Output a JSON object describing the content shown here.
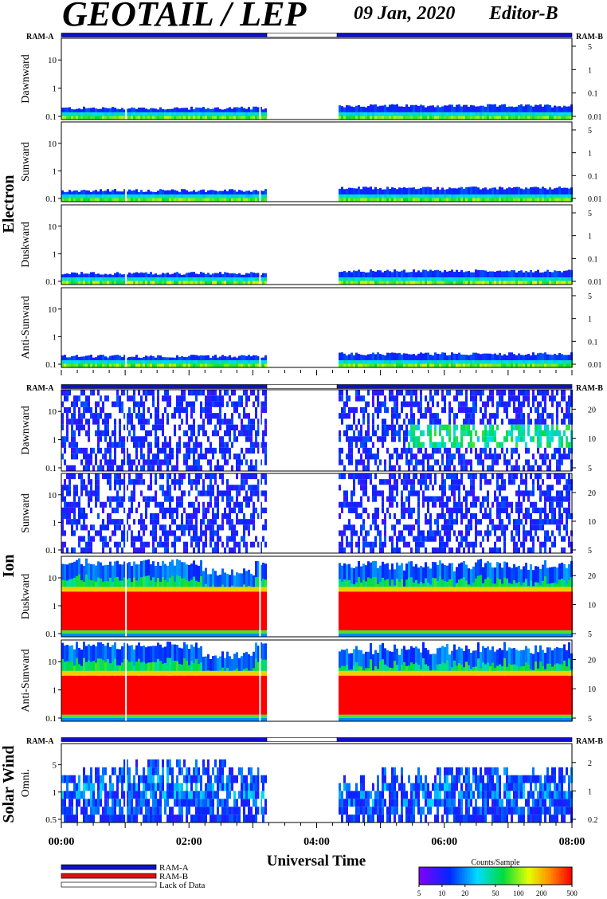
{
  "header": {
    "title": "GEOTAIL / LEP",
    "date": "09 Jan, 2020",
    "editor": "Editor-B"
  },
  "legend": {
    "ram_a": "RAM-A",
    "ram_b": "RAM-B",
    "lack": "Lack of Data",
    "colors": {
      "ram_a": "#1010c8",
      "ram_b": "#e01010",
      "lack": "#ffffff"
    }
  },
  "colorbar": {
    "title": "Counts/Sample",
    "ticks": [
      "5",
      "10",
      "20",
      "50",
      "100",
      "200",
      "500"
    ],
    "scale": "log",
    "range": [
      5,
      500
    ]
  },
  "chart_data": {
    "type": "heatmap",
    "xlabel": "Universal Time",
    "x_ticks": [
      "00:00",
      "02:00",
      "04:00",
      "06:00",
      "08:00"
    ],
    "x_range_hours": [
      0,
      8
    ],
    "data_gap_hours": [
      3.22,
      4.32
    ],
    "groups": [
      {
        "name": "Electron",
        "mode_bar": {
          "left": "RAM-A",
          "right": "RAM-B",
          "segments": [
            {
              "from": 0,
              "to": 3.22,
              "mode": "RAM-A"
            },
            {
              "from": 3.22,
              "to": 4.32,
              "mode": "Lack of Data"
            },
            {
              "from": 4.32,
              "to": 8,
              "mode": "RAM-A"
            }
          ]
        },
        "panels": [
          {
            "name": "Dawnward",
            "y_ticks": [
              "0.1",
              "1",
              "10"
            ],
            "right_ticks": [
              "5",
              "1",
              "0.1",
              "0.01"
            ],
            "profile": "electron",
            "level": 0.55
          },
          {
            "name": "Sunward",
            "y_ticks": [
              "0.1",
              "1",
              "10"
            ],
            "right_ticks": [
              "5",
              "1",
              "0.1",
              "0.01"
            ],
            "profile": "electron",
            "level": 0.55
          },
          {
            "name": "Duskward",
            "y_ticks": [
              "0.1",
              "1",
              "10"
            ],
            "right_ticks": [
              "5",
              "1",
              "0.1",
              "0.01"
            ],
            "profile": "electron",
            "level": 0.7
          },
          {
            "name": "Anti-Sunward",
            "y_ticks": [
              "0.1",
              "1",
              "10"
            ],
            "right_ticks": [
              "5",
              "1",
              "0.1",
              "0.01"
            ],
            "profile": "electron",
            "level": 0.6
          }
        ]
      },
      {
        "name": "Ion",
        "mode_bar": {
          "left": "RAM-A",
          "right": "RAM-B",
          "segments": [
            {
              "from": 0,
              "to": 3.22,
              "mode": "RAM-A"
            },
            {
              "from": 3.22,
              "to": 4.32,
              "mode": "Lack of Data"
            },
            {
              "from": 4.32,
              "to": 8,
              "mode": "RAM-A"
            }
          ]
        },
        "panels": [
          {
            "name": "Dawnward",
            "y_ticks": [
              "0.1",
              "1",
              "10"
            ],
            "right_ticks": [
              "5",
              "10",
              "20"
            ],
            "profile": "ion-sparse",
            "level": 0.3
          },
          {
            "name": "Sunward",
            "y_ticks": [
              "0.1",
              "1",
              "10"
            ],
            "right_ticks": [
              "5",
              "10",
              "20"
            ],
            "profile": "ion-sparse",
            "level": 0.2
          },
          {
            "name": "Duskward",
            "y_ticks": [
              "0.1",
              "1",
              "10"
            ],
            "right_ticks": [
              "5",
              "10",
              "20"
            ],
            "profile": "ion-dense",
            "level": 1.0
          },
          {
            "name": "Anti-Sunward",
            "y_ticks": [
              "0.1",
              "1",
              "10"
            ],
            "right_ticks": [
              "5",
              "10",
              "20"
            ],
            "profile": "ion-dense",
            "level": 1.0
          }
        ]
      },
      {
        "name": "Solar Wind",
        "mode_bar": {
          "left": "RAM-A",
          "right": "RAM-B",
          "segments": [
            {
              "from": 0,
              "to": 3.22,
              "mode": "RAM-A"
            },
            {
              "from": 3.22,
              "to": 4.32,
              "mode": "Lack of Data"
            },
            {
              "from": 4.32,
              "to": 8,
              "mode": "RAM-A"
            }
          ]
        },
        "panels": [
          {
            "name": "Omni.",
            "y_ticks": [
              "0.5",
              "1",
              "5"
            ],
            "right_ticks": [
              "0.2",
              "1",
              "2"
            ],
            "profile": "solarwind",
            "level": 0.5
          }
        ]
      }
    ]
  }
}
